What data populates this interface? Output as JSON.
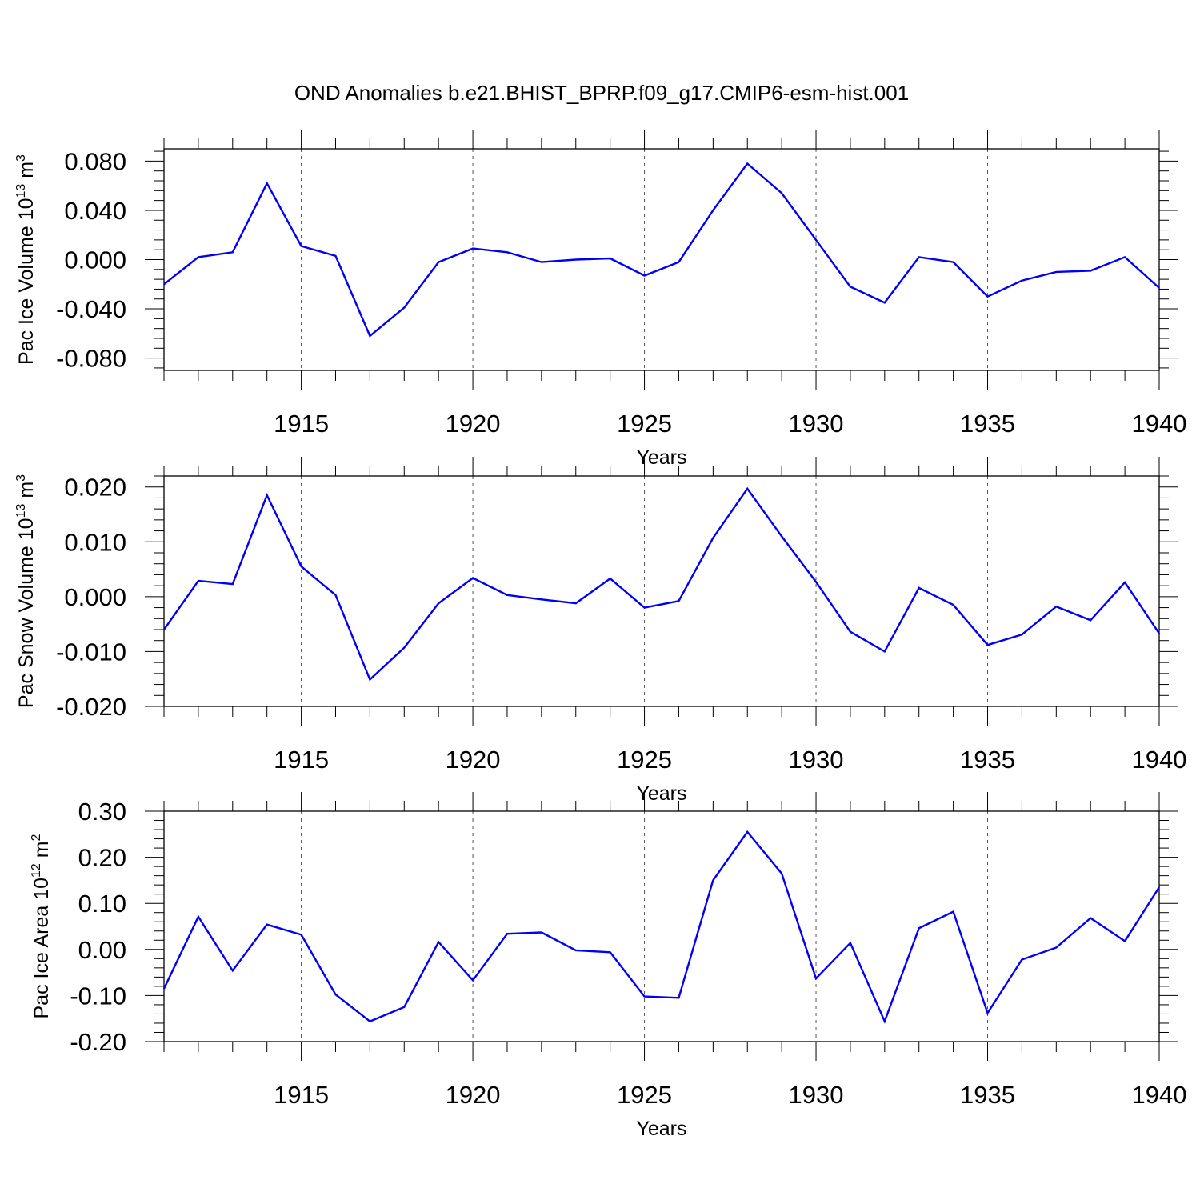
{
  "title": "OND Anomalies b.e21.BHIST_BPRP.f09_g17.CMIP6-esm-hist.001",
  "series_color": "#0000f5",
  "chart_data": [
    {
      "type": "line",
      "ylabel": {
        "base": "Pac Ice Volume 10",
        "exp": "13",
        "unit": " m",
        "unit_exp": "3"
      },
      "xlabel": "Years",
      "xlim": [
        1911,
        1940
      ],
      "ylim": [
        -0.09,
        0.09
      ],
      "xticks": [
        1915,
        1920,
        1925,
        1930,
        1935,
        1940
      ],
      "xtick_labels": [
        "1915",
        "1920",
        "1925",
        "1930",
        "1935",
        "1940"
      ],
      "yticks": [
        -0.08,
        -0.04,
        0.0,
        0.04,
        0.08
      ],
      "ytick_labels": [
        "-0.080",
        "-0.040",
        "0.000",
        "0.040",
        "0.080"
      ],
      "grid": "vertical-dashed",
      "x": [
        1911,
        1912,
        1913,
        1914,
        1915,
        1916,
        1917,
        1918,
        1919,
        1920,
        1921,
        1922,
        1923,
        1924,
        1925,
        1926,
        1927,
        1928,
        1929,
        1930,
        1931,
        1932,
        1933,
        1934,
        1935,
        1936,
        1937,
        1938,
        1939,
        1940
      ],
      "y": [
        -0.02,
        0.002,
        0.006,
        0.062,
        0.011,
        0.003,
        -0.062,
        -0.039,
        -0.002,
        0.009,
        0.006,
        -0.002,
        0.0,
        0.001,
        -0.013,
        -0.002,
        0.04,
        0.078,
        0.054,
        0.016,
        -0.022,
        -0.035,
        0.002,
        -0.002,
        -0.03,
        -0.017,
        -0.01,
        -0.009,
        0.002,
        -0.023
      ]
    },
    {
      "type": "line",
      "ylabel": {
        "base": "Pac Snow Volume 10",
        "exp": "13",
        "unit": " m",
        "unit_exp": "3"
      },
      "xlabel": "Years",
      "xlim": [
        1911,
        1940
      ],
      "ylim": [
        -0.02,
        0.022
      ],
      "xticks": [
        1915,
        1920,
        1925,
        1930,
        1935,
        1940
      ],
      "xtick_labels": [
        "1915",
        "1920",
        "1925",
        "1930",
        "1935",
        "1940"
      ],
      "yticks": [
        -0.02,
        -0.01,
        0.0,
        0.01,
        0.02
      ],
      "ytick_labels": [
        "-0.020",
        "-0.010",
        "0.000",
        "0.010",
        "0.020"
      ],
      "grid": "vertical-dashed",
      "x": [
        1911,
        1912,
        1913,
        1914,
        1915,
        1916,
        1917,
        1918,
        1919,
        1920,
        1921,
        1922,
        1923,
        1924,
        1925,
        1926,
        1927,
        1928,
        1929,
        1930,
        1931,
        1932,
        1933,
        1934,
        1935,
        1936,
        1937,
        1938,
        1939,
        1940
      ],
      "y": [
        -0.006,
        0.0029,
        0.0023,
        0.0185,
        0.0055,
        0.0003,
        -0.0151,
        -0.0093,
        -0.0012,
        0.0034,
        0.0003,
        -0.0005,
        -0.0012,
        0.0033,
        -0.002,
        -0.0008,
        0.0107,
        0.0197,
        0.011,
        0.0027,
        -0.0064,
        -0.01,
        0.0016,
        -0.0015,
        -0.0088,
        -0.0069,
        -0.0018,
        -0.0043,
        0.0026,
        -0.0067
      ]
    },
    {
      "type": "line",
      "ylabel": {
        "base": "Pac Ice Area 10",
        "exp": "12",
        "unit": " m",
        "unit_exp": "2"
      },
      "xlabel": "Years",
      "xlim": [
        1911,
        1940
      ],
      "ylim": [
        -0.2,
        0.3
      ],
      "xticks": [
        1915,
        1920,
        1925,
        1930,
        1935,
        1940
      ],
      "xtick_labels": [
        "1915",
        "1920",
        "1925",
        "1930",
        "1935",
        "1940"
      ],
      "yticks": [
        -0.2,
        -0.1,
        0.0,
        0.1,
        0.2,
        0.3
      ],
      "ytick_labels": [
        "-0.20",
        "-0.10",
        "0.00",
        "0.10",
        "0.20",
        "0.30"
      ],
      "grid": "vertical-dashed",
      "x": [
        1911,
        1912,
        1913,
        1914,
        1915,
        1916,
        1917,
        1918,
        1919,
        1920,
        1921,
        1922,
        1923,
        1924,
        1925,
        1926,
        1927,
        1928,
        1929,
        1930,
        1931,
        1932,
        1933,
        1934,
        1935,
        1936,
        1937,
        1938,
        1939,
        1940
      ],
      "y": [
        -0.085,
        0.071,
        -0.046,
        0.054,
        0.032,
        -0.098,
        -0.156,
        -0.125,
        0.016,
        -0.067,
        0.034,
        0.037,
        -0.002,
        -0.006,
        -0.102,
        -0.105,
        0.15,
        0.255,
        0.165,
        -0.063,
        0.014,
        -0.156,
        0.046,
        0.082,
        -0.138,
        -0.022,
        0.004,
        0.068,
        0.018,
        0.135
      ]
    }
  ]
}
